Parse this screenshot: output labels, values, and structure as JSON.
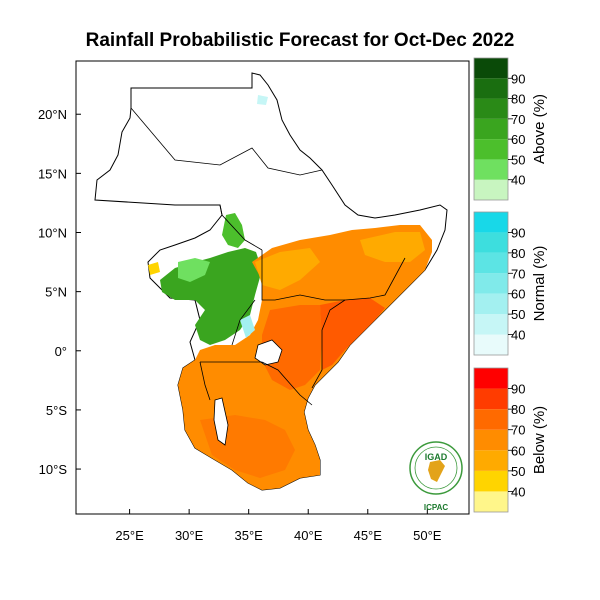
{
  "title": "Rainfall Probabilistic Forecast for Oct-Dec 2022",
  "map": {
    "lon_ticks": [
      {
        "lon": 25,
        "label": "25°E"
      },
      {
        "lon": 30,
        "label": "30°E"
      },
      {
        "lon": 35,
        "label": "35°E"
      },
      {
        "lon": 40,
        "label": "40°E"
      },
      {
        "lon": 45,
        "label": "45°E"
      },
      {
        "lon": 50,
        "label": "50°E"
      }
    ],
    "lat_ticks": [
      {
        "lat": 20,
        "label": "20°N"
      },
      {
        "lat": 15,
        "label": "15°N"
      },
      {
        "lat": 10,
        "label": "10°N"
      },
      {
        "lat": 5,
        "label": "5°N"
      },
      {
        "lat": 0,
        "label": "0°"
      },
      {
        "lat": -5,
        "label": "5°S"
      },
      {
        "lat": -10,
        "label": "10°S"
      }
    ],
    "lon_range": [
      20.5,
      53.5
    ],
    "lat_range": [
      -13.8,
      24.5
    ]
  },
  "legend": {
    "above": {
      "title": "Above (%)",
      "levels": [
        "40",
        "50",
        "60",
        "70",
        "80",
        "90"
      ],
      "colors": [
        "#c8f5c0",
        "#6fe060",
        "#4cbf2c",
        "#3aa51f",
        "#2a8a17",
        "#1a6e10",
        "#0a4a08"
      ]
    },
    "normal": {
      "title": "Normal (%)",
      "levels": [
        "40",
        "50",
        "60",
        "70",
        "80",
        "90"
      ],
      "colors": [
        "#e8fbfb",
        "#c6f6f6",
        "#a3f0f0",
        "#80eaea",
        "#5ce4e4",
        "#3ddede",
        "#18d8e8"
      ]
    },
    "below": {
      "title": "Below (%)",
      "levels": [
        "40",
        "50",
        "60",
        "70",
        "80",
        "90"
      ],
      "colors": [
        "#fff68a",
        "#ffd400",
        "#ffaa00",
        "#ff8c00",
        "#ff6a00",
        "#ff3c00",
        "#ff0000"
      ]
    }
  },
  "logo": {
    "top_text": "IGAD",
    "bottom_text": "ICPAC",
    "colors": {
      "ring": "#3c9a3c",
      "text": "#1d7a2e",
      "map": "#e3a31a"
    }
  }
}
